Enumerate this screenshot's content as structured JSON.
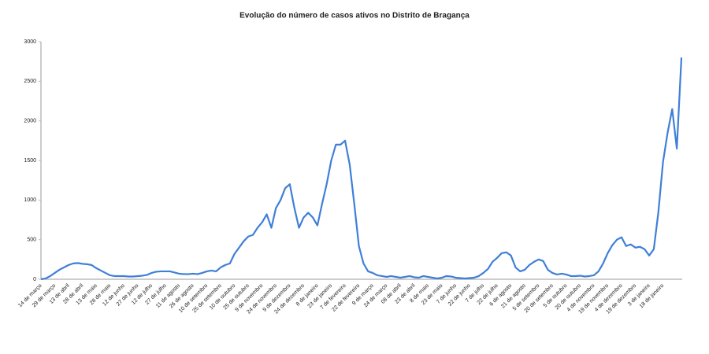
{
  "chart_data": {
    "type": "line",
    "title": "Evolução do número de casos ativos no Distrito de Bragança",
    "categories": [
      "14 de março",
      null,
      null,
      "29 de março",
      null,
      null,
      "13 de abril",
      null,
      null,
      "28 de abril",
      null,
      null,
      "13 de maio",
      null,
      null,
      "28 de maio",
      null,
      null,
      "12 de junho",
      null,
      null,
      "27 de junho",
      null,
      null,
      "12 de julho",
      null,
      null,
      "27 de julho",
      null,
      null,
      "11 de agosto",
      null,
      null,
      "26 de agosto",
      null,
      null,
      "10 de setembro",
      null,
      null,
      "25 de setembro",
      null,
      null,
      "10 de outubro",
      null,
      null,
      "25 de outubro",
      null,
      null,
      "9 de novembro",
      null,
      null,
      "24 de novembro",
      null,
      null,
      "9 de dezembro",
      null,
      null,
      "24 de dezembro",
      null,
      null,
      "8 de janeiro",
      null,
      null,
      "23 de janeiro",
      null,
      null,
      "7 de fevereiro",
      null,
      null,
      "22 de fevereiro",
      null,
      null,
      "9 de março",
      null,
      null,
      "24 de março",
      null,
      null,
      "08 de abril",
      null,
      null,
      "23 de abril",
      null,
      null,
      "8 de maio",
      null,
      null,
      "23 de maio",
      null,
      null,
      "7 de junho",
      null,
      null,
      "22 de junho",
      null,
      null,
      "7 de julho",
      null,
      null,
      "22 de julho",
      null,
      null,
      "6 de agosto",
      null,
      null,
      "21 de agosto",
      null,
      null,
      "5 de setembro",
      null,
      null,
      "20 de setembro",
      null,
      null,
      "5 de outubro",
      null,
      null,
      "20 de outubro",
      null,
      null,
      "4 de novembro",
      null,
      null,
      "19 de novembro",
      null,
      null,
      "4 de dezembro",
      null,
      null,
      "19 de dezembro",
      null,
      null,
      "3 de janeiro",
      null,
      null,
      "18 de janeiro",
      null,
      null,
      null,
      null
    ],
    "series": [
      {
        "color": "#3f7fd8",
        "values": [
          0,
          10,
          40,
          80,
          120,
          150,
          180,
          200,
          205,
          195,
          190,
          180,
          140,
          110,
          80,
          50,
          40,
          40,
          40,
          35,
          35,
          40,
          45,
          55,
          80,
          95,
          100,
          100,
          100,
          85,
          70,
          65,
          65,
          70,
          65,
          80,
          100,
          110,
          100,
          150,
          180,
          200,
          320,
          400,
          480,
          540,
          560,
          650,
          720,
          820,
          650,
          900,
          1000,
          1150,
          1200,
          900,
          650,
          780,
          840,
          780,
          680,
          950,
          1200,
          1500,
          1700,
          1700,
          1750,
          1450,
          950,
          420,
          200,
          100,
          80,
          50,
          40,
          30,
          40,
          30,
          20,
          30,
          40,
          25,
          20,
          40,
          30,
          20,
          10,
          20,
          40,
          35,
          20,
          15,
          10,
          15,
          20,
          40,
          80,
          130,
          220,
          270,
          330,
          340,
          300,
          150,
          100,
          120,
          180,
          220,
          250,
          230,
          120,
          80,
          60,
          70,
          60,
          40,
          40,
          45,
          35,
          40,
          50,
          100,
          200,
          330,
          430,
          500,
          530,
          420,
          440,
          400,
          410,
          380,
          300,
          380,
          850,
          1480,
          1850,
          2150,
          1650,
          2800
        ]
      }
    ],
    "ylim": [
      0,
      3000
    ],
    "yticks": [
      0,
      500,
      1000,
      1500,
      2000,
      2500,
      3000
    ],
    "grid": false
  }
}
